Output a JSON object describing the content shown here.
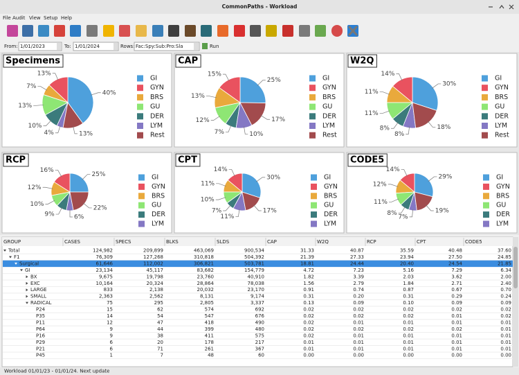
{
  "window_title": "CommonPaths - Workload",
  "menu": [
    "File",
    "Audit",
    "View",
    "Setup",
    "Help"
  ],
  "filter": {
    "from_label": "From:",
    "from_value": "1/01/2023",
    "to_label": "To:",
    "to_value": "1/01/2024",
    "rows_label": "Rows:",
    "rows_value": "Fac:Spy:Sub:Pro:Sla",
    "run": "Run"
  },
  "chart_data": [
    {
      "type": "pie",
      "title": "Specimens",
      "categories": [
        "GI",
        "GYN",
        "BRS",
        "GU",
        "DER",
        "LYM",
        "Rest"
      ],
      "values": [
        40,
        13,
        7,
        13,
        10,
        4,
        13
      ],
      "value_labels": [
        "40%",
        "13%",
        "7%",
        "13%",
        "10%",
        "4%",
        "13%"
      ],
      "colors": [
        "#4ea0dc",
        "#e9525f",
        "#e9a93c",
        "#8ee674",
        "#3b7b7c",
        "#8478c4",
        "#a24b4d"
      ]
    },
    {
      "type": "pie",
      "title": "CAP",
      "categories": [
        "GI",
        "GYN",
        "BRS",
        "GU",
        "DER",
        "LYM",
        "Rest"
      ],
      "values": [
        25,
        15,
        13,
        12,
        7,
        10,
        17
      ],
      "value_labels": [
        "25%",
        "15%",
        "13%",
        "12%",
        "7%",
        "10%",
        "17%"
      ],
      "colors": [
        "#4ea0dc",
        "#e9525f",
        "#e9a93c",
        "#8ee674",
        "#3b7b7c",
        "#8478c4",
        "#a24b4d"
      ]
    },
    {
      "type": "pie",
      "title": "W2Q",
      "categories": [
        "GI",
        "GYN",
        "BRS",
        "GU",
        "DER",
        "LYM",
        "Rest"
      ],
      "values": [
        30,
        14,
        11,
        11,
        8,
        8,
        18
      ],
      "value_labels": [
        "30%",
        "14%",
        "11%",
        "11%",
        "8%",
        "8%",
        "18%"
      ],
      "colors": [
        "#4ea0dc",
        "#e9525f",
        "#e9a93c",
        "#8ee674",
        "#3b7b7c",
        "#8478c4",
        "#a24b4d"
      ]
    },
    {
      "type": "pie",
      "title": "RCP",
      "categories": [
        "GI",
        "GYN",
        "BRS",
        "GU",
        "DER",
        "LYM",
        null
      ],
      "values": [
        25,
        16,
        12,
        10,
        9,
        6,
        22
      ],
      "value_labels": [
        "25%",
        "16%",
        "12%",
        "10%",
        "9%",
        "6%",
        "22%"
      ],
      "colors": [
        "#4ea0dc",
        "#e9525f",
        "#e9a93c",
        "#8ee674",
        "#3b7b7c",
        "#8478c4",
        "#a24b4d"
      ]
    },
    {
      "type": "pie",
      "title": "CPT",
      "categories": [
        "GI",
        "GYN",
        "BRS",
        "GU",
        "DER",
        "LYM",
        null
      ],
      "values": [
        30,
        14,
        11,
        10,
        7,
        11,
        17
      ],
      "value_labels": [
        "30%",
        "14%",
        "11%",
        "10%",
        "7%",
        "11%",
        "17%"
      ],
      "colors": [
        "#4ea0dc",
        "#e9525f",
        "#e9a93c",
        "#8ee674",
        "#3b7b7c",
        "#8478c4",
        "#a24b4d"
      ]
    },
    {
      "type": "pie",
      "title": "CODE5",
      "categories": [
        "GI",
        "GYN",
        "BRS",
        "GU",
        "DER",
        "LYM",
        null
      ],
      "values": [
        29,
        14,
        12,
        11,
        8,
        7,
        19
      ],
      "value_labels": [
        "29%",
        "14%",
        "12%",
        "11%",
        "8%",
        "7%",
        "19%"
      ],
      "colors": [
        "#4ea0dc",
        "#e9525f",
        "#e9a93c",
        "#8ee674",
        "#3b7b7c",
        "#8478c4",
        "#a24b4d"
      ]
    }
  ],
  "table": {
    "header": [
      "GROUP",
      "CASES",
      "SPECS",
      "BLKS",
      "SLDS",
      "CAP",
      "W2Q",
      "RCP",
      "CPT",
      "CODE5"
    ],
    "rows": [
      {
        "cells": [
          "Total",
          "124,982",
          "209,899",
          "463,069",
          "900,534",
          "31.33",
          "40.87",
          "35.59",
          "40.48",
          "37.60"
        ],
        "expanded": true,
        "children": [
          {
            "cells": [
              "F1",
              "76,309",
              "127,268",
              "310,818",
              "504,392",
              "21.39",
              "27.33",
              "23.94",
              "27.50",
              "24.85"
            ],
            "expanded": true,
            "children": [
              {
                "cells": [
                  "Surgical",
                  "61,646",
                  "112,002",
                  "306,821",
                  "503,781",
                  "18.81",
                  "24.44",
                  "20.40",
                  "24.54",
                  "21.85"
                ],
                "expanded": true,
                "selected": true,
                "children": [
                  {
                    "cells": [
                      "GI",
                      "23,134",
                      "45,117",
                      "83,682",
                      "154,779",
                      "4.72",
                      "7.23",
                      "5.16",
                      "7.29",
                      "6.34"
                    ],
                    "expanded": true,
                    "children": [
                      {
                        "cells": [
                          "BX",
                          "9,675",
                          "19,798",
                          "23,760",
                          "40,910",
                          "1.82",
                          "3.39",
                          "2.03",
                          "3.62",
                          "2.00"
                        ],
                        "expanded": false
                      },
                      {
                        "cells": [
                          "EXC",
                          "10,164",
                          "20,324",
                          "28,864",
                          "78,038",
                          "1.56",
                          "2.79",
                          "1.84",
                          "2.71",
                          "2.40"
                        ],
                        "expanded": false
                      },
                      {
                        "cells": [
                          "LARGE",
                          "833",
                          "2,138",
                          "20,032",
                          "23,170",
                          "0.91",
                          "0.74",
                          "0.87",
                          "0.67",
                          "0.70"
                        ],
                        "expanded": false
                      },
                      {
                        "cells": [
                          "SMALL",
                          "2,363",
                          "2,562",
                          "8,131",
                          "9,174",
                          "0.31",
                          "0.20",
                          "0.31",
                          "0.29",
                          "0.24"
                        ],
                        "expanded": false
                      },
                      {
                        "cells": [
                          "RADICAL",
                          "75",
                          "295",
                          "2,805",
                          "3,337",
                          "0.13",
                          "0.09",
                          "0.10",
                          "0.09",
                          "0.09"
                        ],
                        "expanded": true,
                        "children": [
                          {
                            "cells": [
                              "P24",
                              "15",
                              "62",
                              "574",
                              "692",
                              "0.02",
                              "0.02",
                              "0.02",
                              "0.02",
                              "0.02"
                            ]
                          },
                          {
                            "cells": [
                              "P35",
                              "14",
                              "54",
                              "547",
                              "676",
                              "0.02",
                              "0.02",
                              "0.02",
                              "0.01",
                              "0.02"
                            ]
                          },
                          {
                            "cells": [
                              "P11",
                              "12",
                              "47",
                              "418",
                              "490",
                              "0.02",
                              "0.01",
                              "0.01",
                              "0.01",
                              "0.01"
                            ]
                          },
                          {
                            "cells": [
                              "P64",
                              "9",
                              "44",
                              "399",
                              "480",
                              "0.02",
                              "0.02",
                              "0.02",
                              "0.02",
                              "0.01"
                            ]
                          },
                          {
                            "cells": [
                              "P16",
                              "9",
                              "38",
                              "411",
                              "575",
                              "0.02",
                              "0.01",
                              "0.01",
                              "0.01",
                              "0.01"
                            ]
                          },
                          {
                            "cells": [
                              "P29",
                              "6",
                              "20",
                              "178",
                              "217",
                              "0.01",
                              "0.01",
                              "0.01",
                              "0.01",
                              "0.01"
                            ]
                          },
                          {
                            "cells": [
                              "P21",
                              "6",
                              "71",
                              "261",
                              "367",
                              "0.01",
                              "0.01",
                              "0.01",
                              "0.01",
                              "0.01"
                            ]
                          },
                          {
                            "cells": [
                              "P45",
                              "1",
                              "7",
                              "48",
                              "60",
                              "0.00",
                              "0.00",
                              "0.00",
                              "0.00",
                              "0.00"
                            ]
                          }
                        ]
                      }
                    ]
                  }
                ]
              }
            ]
          }
        ]
      }
    ]
  },
  "status": "Workload 01/01/23 - 01/01/24.  Next update"
}
